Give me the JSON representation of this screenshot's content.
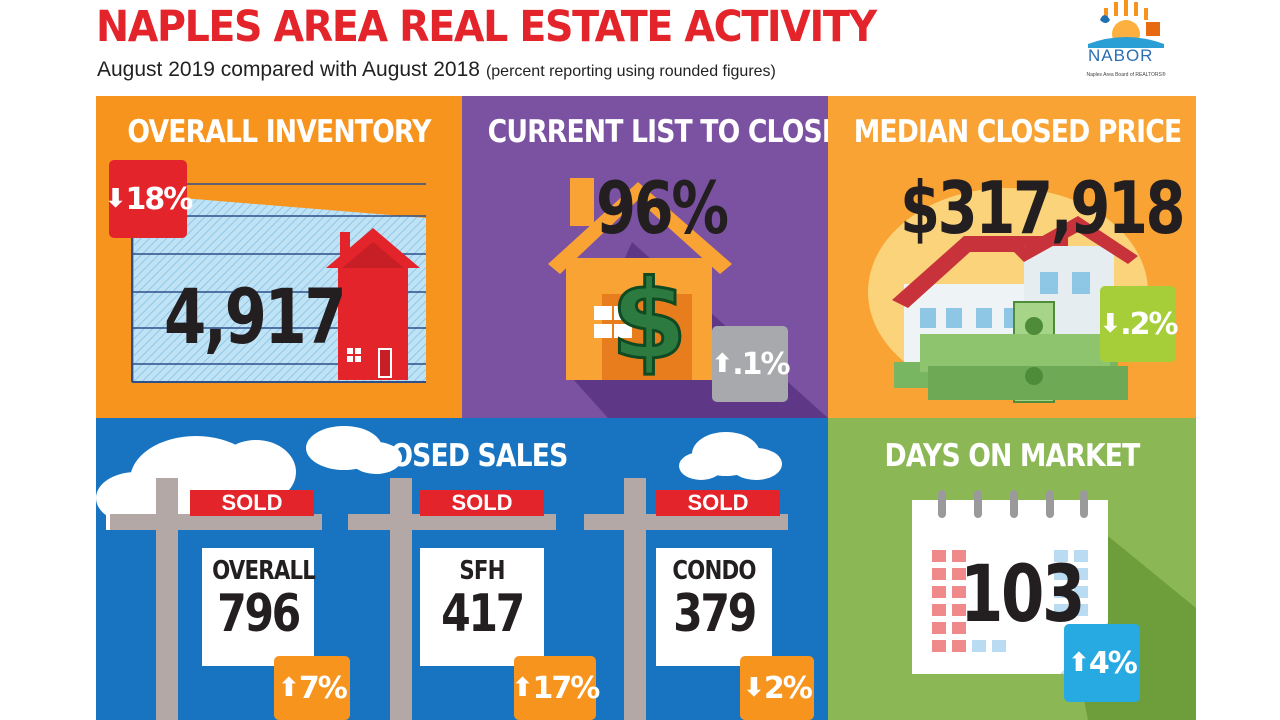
{
  "header": {
    "title": "NAPLES AREA REAL ESTATE ACTIVITY",
    "subtitle": "August 2019 compared with August 2018",
    "subtitle_note": "(percent reporting using rounded figures)"
  },
  "logo": {
    "word": "NABOR",
    "tagline": "Naples Area Board of REALTORS®"
  },
  "inventory": {
    "heading": "OVERALL INVENTORY",
    "value": "4,917",
    "change": "18%",
    "direction": "down",
    "badge_color": "#e3242b"
  },
  "list_to_closed": {
    "heading": "CURRENT LIST TO CLOSED",
    "value": "96%",
    "change": ".1%",
    "direction": "up",
    "badge_color": "#a7a9ac"
  },
  "median_price": {
    "heading": "MEDIAN CLOSED PRICE",
    "value": "$317,918",
    "change": ".2%",
    "direction": "down",
    "badge_color": "#a6ce39"
  },
  "closed_sales": {
    "heading": "CLOSED SALES",
    "sold_label": "SOLD",
    "signs": [
      {
        "name": "OVERALL",
        "value": "796",
        "change": "7%",
        "direction": "up"
      },
      {
        "name": "SFH",
        "value": "417",
        "change": "17%",
        "direction": "up"
      },
      {
        "name": "CONDO",
        "value": "379",
        "change": "2%",
        "direction": "down"
      }
    ],
    "badge_color": "#f7941d"
  },
  "days_on_market": {
    "heading": "DAYS ON MARKET",
    "value": "103",
    "change": "4%",
    "direction": "up",
    "badge_color": "#27aae1"
  },
  "colors": {
    "title_red": "#e3242b",
    "orange": "#f7941d",
    "purple": "#7b52a1",
    "light_orange": "#f9a334",
    "blue": "#1874c1",
    "green": "#8bb755"
  }
}
